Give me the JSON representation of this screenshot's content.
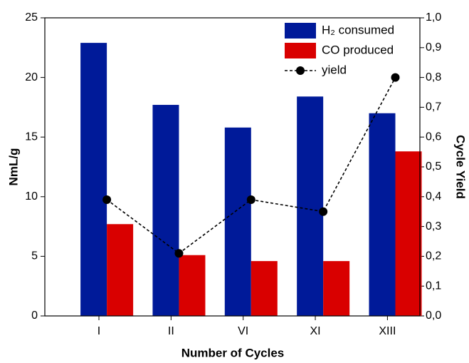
{
  "chart_data": {
    "type": "bar",
    "x_label": "Number of Cycles",
    "y_label": "NmL/g",
    "y2_label": "Cycle Yield",
    "categories": [
      "I",
      "II",
      "VI",
      "XI",
      "XIII"
    ],
    "series": [
      {
        "name": "H₂ consumed",
        "color": "#001a99",
        "values": [
          22.9,
          17.7,
          15.8,
          18.4,
          17.0
        ]
      },
      {
        "name": "CO produced",
        "color": "#d90000",
        "values": [
          7.7,
          5.1,
          4.6,
          4.6,
          13.8
        ]
      },
      {
        "name": "yield",
        "type": "line",
        "axis": "y2",
        "color": "#000000",
        "values": [
          0.39,
          0.21,
          0.39,
          0.35,
          0.8
        ]
      }
    ],
    "ylim": [
      0,
      25
    ],
    "yticks": [
      0,
      5,
      10,
      15,
      20,
      25
    ],
    "y2lim": [
      0,
      1
    ],
    "y2ticks": [
      {
        "value": 0,
        "label": "0,0"
      },
      {
        "value": 0.1,
        "label": "0,1"
      },
      {
        "value": 0.2,
        "label": "0,2"
      },
      {
        "value": 0.3,
        "label": "0,3"
      },
      {
        "value": 0.4,
        "label": "0,4"
      },
      {
        "value": 0.5,
        "label": "0,5"
      },
      {
        "value": 0.6,
        "label": "0,6"
      },
      {
        "value": 0.7,
        "label": "0,7"
      },
      {
        "value": 0.8,
        "label": "0,8"
      },
      {
        "value": 0.9,
        "label": "0,9"
      },
      {
        "value": 1,
        "label": "1,0"
      }
    ],
    "legend": "upper right"
  }
}
